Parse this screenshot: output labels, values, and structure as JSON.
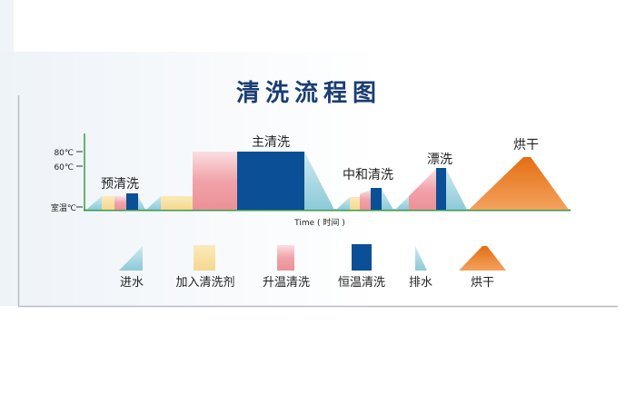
{
  "title": "清洗流程图",
  "axis": {
    "y_ticks": [
      "80℃",
      "60℃",
      "室温℃"
    ],
    "x_label": "Time ( 时间 )"
  },
  "stages": [
    "预清洗",
    "主清洗",
    "中和清洗",
    "漂洗",
    "烘干"
  ],
  "legend": [
    {
      "label": "进水",
      "shape": "rising-triangle",
      "color": "#9fd1dc"
    },
    {
      "label": "加入清洗剂",
      "shape": "rect",
      "color": "#f7dc98"
    },
    {
      "label": "升温清洗",
      "shape": "rect",
      "color": "#ee9aa0"
    },
    {
      "label": "恒温清洗",
      "shape": "rect",
      "color": "#0b4f96"
    },
    {
      "label": "排水",
      "shape": "falling-triangle",
      "color": "#9fd1dc"
    },
    {
      "label": "烘干",
      "shape": "trapezoid",
      "color": "#e8771f"
    }
  ],
  "colors": {
    "title": "#1a3d73",
    "axis": "#3a9a4a",
    "water": "#9fd1dc",
    "detergent": "#f7dc98",
    "heating": "#ee9aa0",
    "constant": "#0b4f96",
    "dry": "#e8771f"
  }
}
